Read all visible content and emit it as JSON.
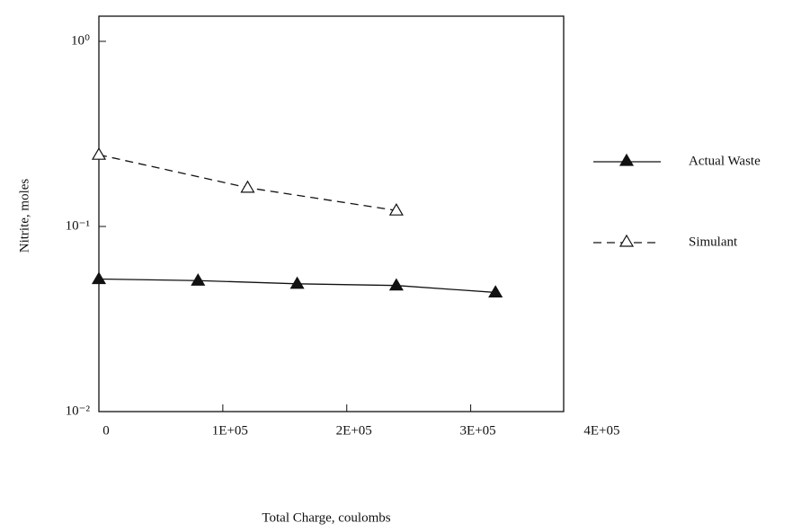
{
  "chart_data": {
    "type": "line",
    "x_label": "Total Charge, coulombs",
    "y_label": "Nitrite, moles",
    "log_scale_y": true,
    "xlim": [
      0,
      375000
    ],
    "ylim": [
      0.01,
      1
    ],
    "xticks": [
      0,
      {
        "value": 100000,
        "label": "1E+05"
      },
      {
        "value": 200000,
        "label": "2E+05"
      },
      {
        "value": 300000,
        "label": "3E+05"
      },
      {
        "value": 400000,
        "label": "4E+05"
      }
    ],
    "yticks": [
      {
        "value": 0.01,
        "label": "10⁻²"
      },
      {
        "value": 0.1,
        "label": "10⁻¹"
      },
      {
        "value": 1,
        "label": "10⁰"
      }
    ],
    "legend": "right",
    "series": [
      {
        "name": "Actual Waste",
        "color": "#111111",
        "dashed": false,
        "marker_filled": true,
        "x": [
          0,
          80000,
          160000,
          240000,
          320000
        ],
        "values": [
          0.052,
          0.051,
          0.049,
          0.048,
          0.044
        ]
      },
      {
        "name": "Simulant",
        "color": "#111111",
        "dashed": true,
        "marker_filled": false,
        "x": [
          0,
          120000,
          240000
        ],
        "values": [
          0.244,
          0.162,
          0.122
        ]
      }
    ]
  }
}
